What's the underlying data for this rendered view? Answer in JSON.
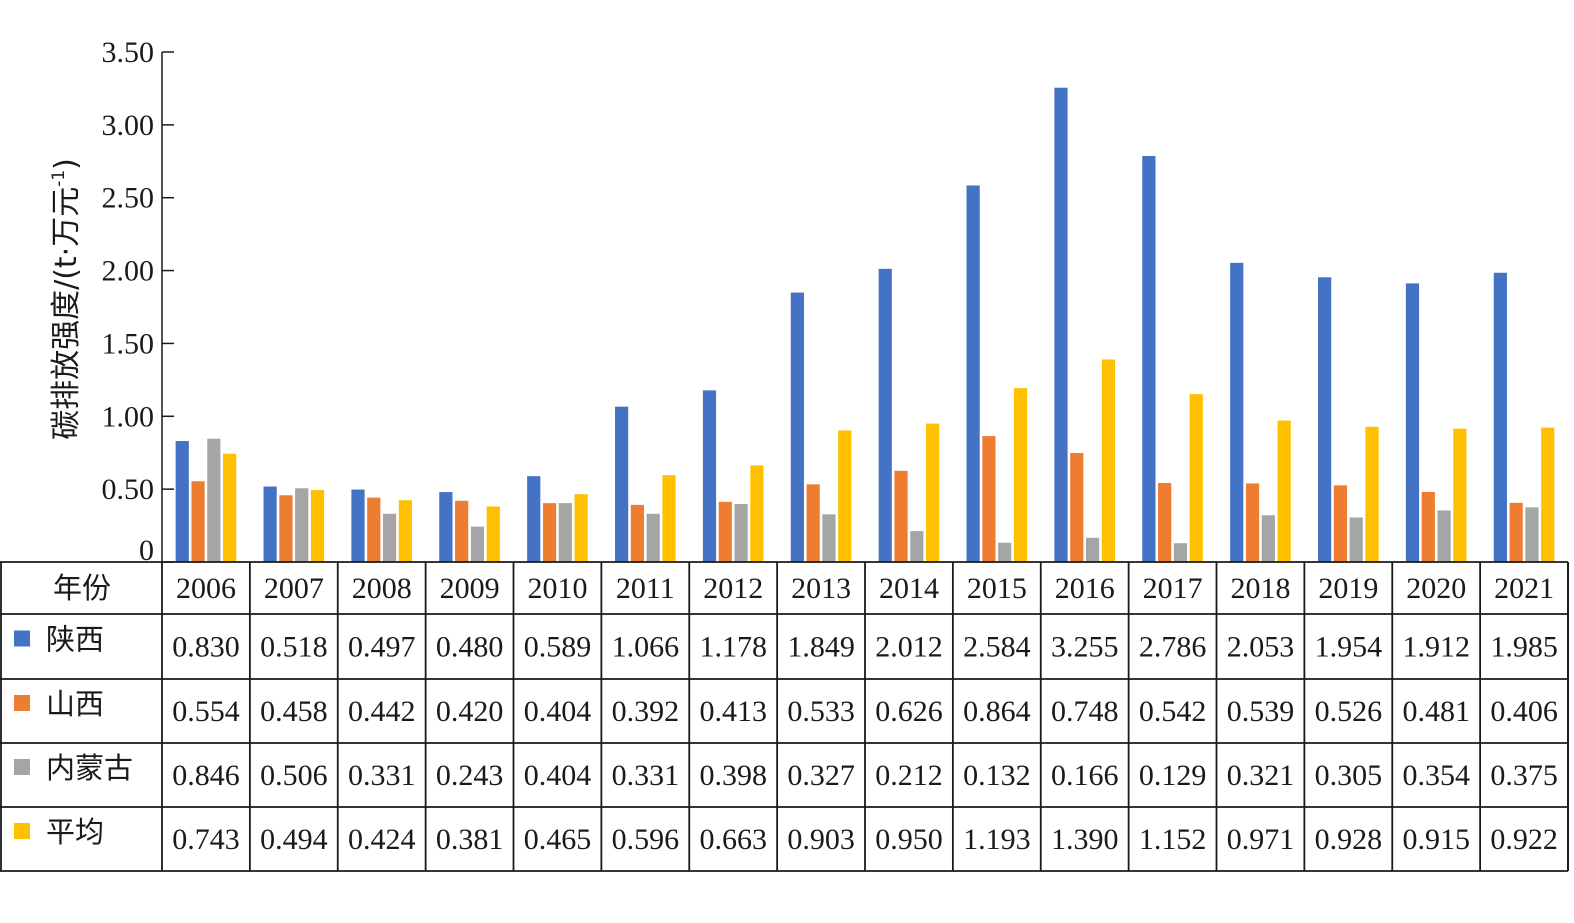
{
  "chart_data": {
    "type": "bar",
    "title": "",
    "ylabel": "碳排放强度/(t·万元",
    "ylabel_sup": "-1",
    "ylabel_close": ")",
    "ylim": [
      0,
      3.5
    ],
    "yticks": [
      0,
      0.5,
      1.0,
      1.5,
      2.0,
      2.5,
      3.0,
      3.5
    ],
    "ytick_labels": [
      "0",
      "0.50",
      "1.00",
      "1.50",
      "2.00",
      "2.50",
      "3.00",
      "3.50"
    ],
    "table_header": "年份",
    "categories": [
      "2006",
      "2007",
      "2008",
      "2009",
      "2010",
      "2011",
      "2012",
      "2013",
      "2014",
      "2015",
      "2016",
      "2017",
      "2018",
      "2019",
      "2020",
      "2021"
    ],
    "series": [
      {
        "name": "陕西",
        "color": "#4472C4",
        "values": [
          0.83,
          0.518,
          0.497,
          0.48,
          0.589,
          1.066,
          1.178,
          1.849,
          2.012,
          2.584,
          3.255,
          2.786,
          2.053,
          1.954,
          1.912,
          1.985
        ],
        "labels": [
          "0.830",
          "0.518",
          "0.497",
          "0.480",
          "0.589",
          "1.066",
          "1.178",
          "1.849",
          "2.012",
          "2.584",
          "3.255",
          "2.786",
          "2.053",
          "1.954",
          "1.912",
          "1.985"
        ]
      },
      {
        "name": "山西",
        "color": "#ED7D31",
        "values": [
          0.554,
          0.458,
          0.442,
          0.42,
          0.404,
          0.392,
          0.413,
          0.533,
          0.626,
          0.864,
          0.748,
          0.542,
          0.539,
          0.526,
          0.481,
          0.406
        ],
        "labels": [
          "0.554",
          "0.458",
          "0.442",
          "0.420",
          "0.404",
          "0.392",
          "0.413",
          "0.533",
          "0.626",
          "0.864",
          "0.748",
          "0.542",
          "0.539",
          "0.526",
          "0.481",
          "0.406"
        ]
      },
      {
        "name": "内蒙古",
        "color": "#A5A5A5",
        "values": [
          0.846,
          0.506,
          0.331,
          0.243,
          0.404,
          0.331,
          0.398,
          0.327,
          0.212,
          0.132,
          0.166,
          0.129,
          0.321,
          0.305,
          0.354,
          0.375
        ],
        "labels": [
          "0.846",
          "0.506",
          "0.331",
          "0.243",
          "0.404",
          "0.331",
          "0.398",
          "0.327",
          "0.212",
          "0.132",
          "0.166",
          "0.129",
          "0.321",
          "0.305",
          "0.354",
          "0.375"
        ]
      },
      {
        "name": "平均",
        "color": "#FFC000",
        "values": [
          0.743,
          0.494,
          0.424,
          0.381,
          0.465,
          0.596,
          0.663,
          0.903,
          0.95,
          1.193,
          1.39,
          1.152,
          0.971,
          0.928,
          0.915,
          0.922
        ],
        "labels": [
          "0.743",
          "0.494",
          "0.424",
          "0.381",
          "0.465",
          "0.596",
          "0.663",
          "0.903",
          "0.950",
          "1.193",
          "1.390",
          "1.152",
          "0.971",
          "0.928",
          "0.915",
          "0.922"
        ]
      }
    ]
  }
}
